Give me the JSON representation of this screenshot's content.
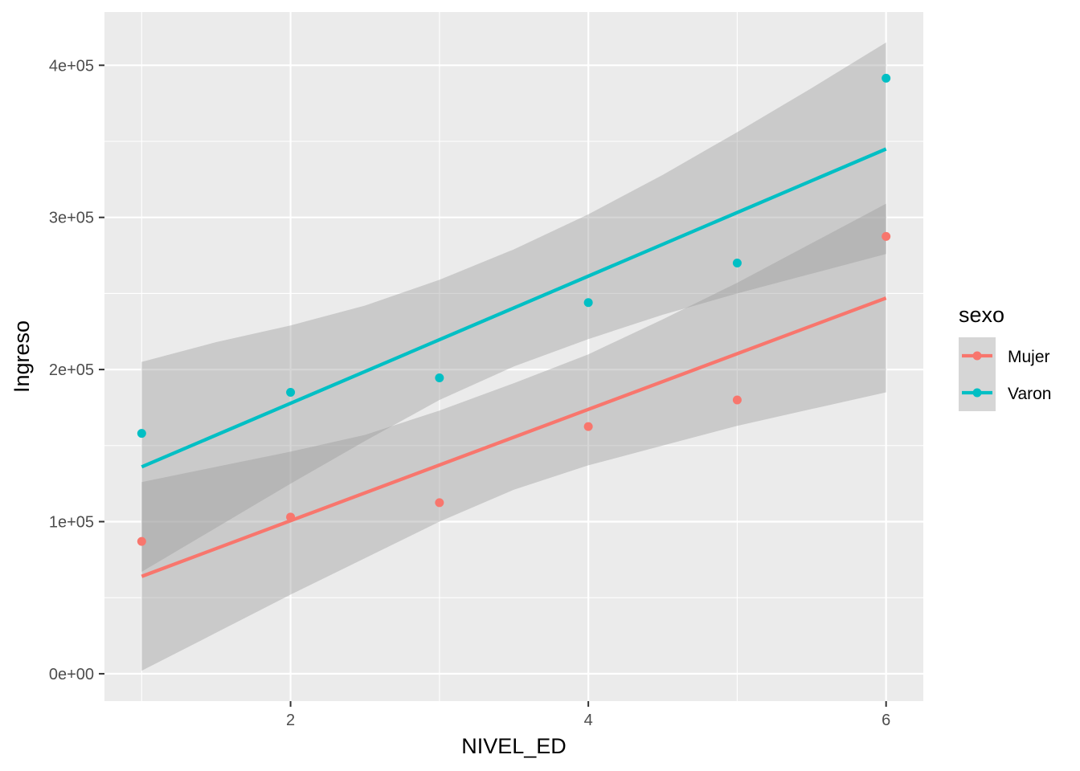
{
  "chart_data": {
    "type": "scatter",
    "xlabel": "NIVEL_ED",
    "ylabel": "Ingreso",
    "xlim": [
      0.75,
      6.25
    ],
    "ylim": [
      -18000,
      435000
    ],
    "x_ticks": [
      2,
      4,
      6
    ],
    "x_tick_labels": [
      "2",
      "4",
      "6"
    ],
    "y_ticks": [
      0,
      100000,
      200000,
      300000,
      400000
    ],
    "y_tick_labels": [
      "0e+00",
      "1e+05",
      "2e+05",
      "3e+05",
      "4e+05"
    ],
    "grid": true,
    "legend": {
      "title": "sexo",
      "position": "right"
    },
    "series": [
      {
        "name": "Mujer",
        "color": "#F8766D",
        "x": [
          1,
          2,
          3,
          4,
          5,
          6
        ],
        "y": [
          87000,
          103000,
          112500,
          162500,
          180000,
          287500
        ],
        "fit": {
          "x": [
            1,
            6
          ],
          "y": [
            64000,
            247000
          ]
        },
        "ci_lower": [
          [
            1,
            2000
          ],
          [
            1.5,
            27000
          ],
          [
            2,
            52000
          ],
          [
            2.5,
            76000
          ],
          [
            3,
            100000
          ],
          [
            3.5,
            121000
          ],
          [
            4,
            137000
          ],
          [
            4.5,
            150000
          ],
          [
            5,
            163000
          ],
          [
            5.5,
            174000
          ],
          [
            6,
            185000
          ]
        ],
        "ci_upper": [
          [
            1,
            126000
          ],
          [
            1.5,
            136000
          ],
          [
            2,
            146000
          ],
          [
            2.5,
            157000
          ],
          [
            3,
            173000
          ],
          [
            3.5,
            191000
          ],
          [
            4,
            210000
          ],
          [
            4.5,
            233000
          ],
          [
            5,
            257000
          ],
          [
            5.5,
            283000
          ],
          [
            6,
            309000
          ]
        ]
      },
      {
        "name": "Varon",
        "color": "#00BFC4",
        "x": [
          1,
          2,
          3,
          4,
          5,
          6
        ],
        "y": [
          158000,
          185000,
          194500,
          244000,
          270000,
          391500
        ],
        "fit": {
          "x": [
            1,
            6
          ],
          "y": [
            136000,
            345000
          ]
        },
        "ci_lower": [
          [
            1,
            67000
          ],
          [
            1.5,
            96000
          ],
          [
            2,
            125000
          ],
          [
            2.5,
            153000
          ],
          [
            3,
            180000
          ],
          [
            3.5,
            202000
          ],
          [
            4,
            220000
          ],
          [
            4.5,
            236000
          ],
          [
            5,
            250000
          ],
          [
            5.5,
            263000
          ],
          [
            6,
            276000
          ]
        ],
        "ci_upper": [
          [
            1,
            205000
          ],
          [
            1.5,
            218000
          ],
          [
            2,
            229000
          ],
          [
            2.5,
            242000
          ],
          [
            3,
            259000
          ],
          [
            3.5,
            279000
          ],
          [
            4,
            302000
          ],
          [
            4.5,
            328000
          ],
          [
            5,
            356000
          ],
          [
            5.5,
            385000
          ],
          [
            6,
            415000
          ]
        ]
      }
    ]
  }
}
